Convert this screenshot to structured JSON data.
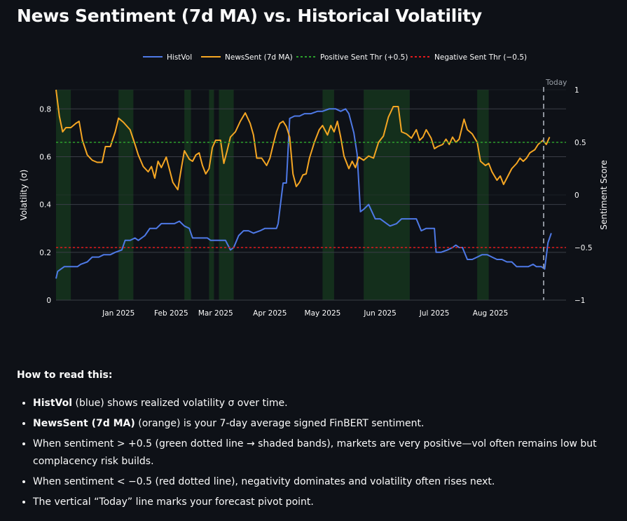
{
  "title": "News Sentiment (7d MA) vs. Historical Volatility",
  "colors": {
    "background": "#0e1117",
    "histvol": "#4e79e6",
    "newssent": "#f5a623",
    "pos_thr": "#2ca02c",
    "neg_thr": "#e31a1c",
    "band": "#173a1f",
    "grid": "#3a3e47",
    "today": "#8d929b"
  },
  "chart_data": {
    "type": "line",
    "title": "News Sentiment (7d MA) vs. Historical Volatility",
    "legend": {
      "placement": "top-center"
    },
    "x_ticks": [
      "Jan 2025",
      "Feb 2025",
      "Mar 2025",
      "Apr 2025",
      "May 2025",
      "Jun 2025",
      "Jul 2025",
      "Aug 2025"
    ],
    "y_left": {
      "label": "Volatility (σ)",
      "range": [
        0,
        0.88
      ],
      "ticks": [
        "0",
        "0.2",
        "0.4",
        "0.6",
        "0.8"
      ]
    },
    "y_right": {
      "label": "Sentiment Score",
      "range": [
        -1,
        1
      ],
      "ticks": [
        "−1",
        "−0.5",
        "0",
        "0.5",
        "1"
      ]
    },
    "today_label": "Today",
    "today_date": "2025-08-14",
    "series": [
      {
        "name": "HistVol",
        "axis": "left",
        "points": [
          [
            "2024-12-18",
            0.09
          ],
          [
            "2024-12-19",
            0.12
          ],
          [
            "2024-12-21",
            0.13
          ],
          [
            "2024-12-23",
            0.14
          ],
          [
            "2024-12-27",
            0.14
          ],
          [
            "2024-12-31",
            0.14
          ],
          [
            "2025-01-02",
            0.15
          ],
          [
            "2025-01-06",
            0.16
          ],
          [
            "2025-01-09",
            0.18
          ],
          [
            "2025-01-13",
            0.18
          ],
          [
            "2025-01-16",
            0.19
          ],
          [
            "2025-01-20",
            0.19
          ],
          [
            "2025-01-23",
            0.2
          ],
          [
            "2025-01-27",
            0.21
          ],
          [
            "2025-01-29",
            0.25
          ],
          [
            "2025-02-01",
            0.25
          ],
          [
            "2025-02-04",
            0.26
          ],
          [
            "2025-02-06",
            0.25
          ],
          [
            "2025-02-10",
            0.27
          ],
          [
            "2025-02-13",
            0.3
          ],
          [
            "2025-02-17",
            0.3
          ],
          [
            "2025-02-20",
            0.32
          ],
          [
            "2025-02-24",
            0.32
          ],
          [
            "2025-02-28",
            0.32
          ],
          [
            "2025-03-03",
            0.33
          ],
          [
            "2025-03-06",
            0.31
          ],
          [
            "2025-03-09",
            0.3
          ],
          [
            "2025-03-11",
            0.26
          ],
          [
            "2025-03-16",
            0.26
          ],
          [
            "2025-03-20",
            0.26
          ],
          [
            "2025-03-22",
            0.25
          ],
          [
            "2025-03-27",
            0.25
          ],
          [
            "2025-03-31",
            0.25
          ],
          [
            "2025-04-03",
            0.21
          ],
          [
            "2025-04-05",
            0.22
          ],
          [
            "2025-04-08",
            0.27
          ],
          [
            "2025-04-11",
            0.29
          ],
          [
            "2025-04-14",
            0.29
          ],
          [
            "2025-04-17",
            0.28
          ],
          [
            "2025-04-21",
            0.29
          ],
          [
            "2025-04-24",
            0.3
          ],
          [
            "2025-04-27",
            0.3
          ],
          [
            "2025-05-01",
            0.3
          ],
          [
            "2025-05-02",
            0.32
          ],
          [
            "2025-05-05",
            0.49
          ],
          [
            "2025-05-07",
            0.49
          ],
          [
            "2025-05-09",
            0.76
          ],
          [
            "2025-05-12",
            0.77
          ],
          [
            "2025-05-15",
            0.77
          ],
          [
            "2025-05-18",
            0.78
          ],
          [
            "2025-05-22",
            0.78
          ],
          [
            "2025-05-26",
            0.79
          ],
          [
            "2025-05-29",
            0.79
          ],
          [
            "2025-06-02",
            0.8
          ],
          [
            "2025-06-06",
            0.8
          ],
          [
            "2025-06-09",
            0.79
          ],
          [
            "2025-06-12",
            0.8
          ],
          [
            "2025-06-14",
            0.78
          ],
          [
            "2025-06-17",
            0.7
          ],
          [
            "2025-06-19",
            0.61
          ],
          [
            "2025-06-21",
            0.37
          ],
          [
            "2025-06-23",
            0.38
          ],
          [
            "2025-06-26",
            0.4
          ],
          [
            "2025-06-28",
            0.37
          ],
          [
            "2025-06-30",
            0.34
          ],
          [
            "2025-07-03",
            0.34
          ],
          [
            "2025-07-07",
            0.32
          ],
          [
            "2025-07-09",
            0.31
          ],
          [
            "2025-07-13",
            0.32
          ],
          [
            "2025-07-16",
            0.34
          ],
          [
            "2025-07-21",
            0.34
          ],
          [
            "2025-07-25",
            0.34
          ],
          [
            "2025-07-28",
            0.29
          ],
          [
            "2025-07-31",
            0.3
          ],
          [
            "2025-08-05",
            0.3
          ],
          [
            "2025-08-06",
            0.2
          ],
          [
            "2025-08-09",
            0.2
          ],
          [
            "2025-08-13",
            0.21
          ],
          [
            "2025-08-16",
            0.22
          ],
          [
            "2025-08-18",
            0.23
          ],
          [
            "2025-08-20",
            0.22
          ],
          [
            "2025-08-22",
            0.22
          ],
          [
            "2025-08-25",
            0.17
          ],
          [
            "2025-08-28",
            0.17
          ],
          [
            "2025-08-31",
            0.18
          ],
          [
            "2025-09-03",
            0.19
          ],
          [
            "2025-09-06",
            0.19
          ],
          [
            "2025-09-09",
            0.18
          ],
          [
            "2025-09-12",
            0.17
          ],
          [
            "2025-09-15",
            0.17
          ],
          [
            "2025-09-18",
            0.16
          ],
          [
            "2025-09-21",
            0.16
          ],
          [
            "2025-09-24",
            0.14
          ],
          [
            "2025-09-28",
            0.14
          ],
          [
            "2025-10-01",
            0.14
          ],
          [
            "2025-10-04",
            0.15
          ],
          [
            "2025-10-06",
            0.14
          ],
          [
            "2025-10-09",
            0.14
          ],
          [
            "2025-10-11",
            0.13
          ],
          [
            "2025-10-13",
            0.24
          ],
          [
            "2025-10-15",
            0.28
          ]
        ]
      },
      {
        "name": "NewsSent (7d MA)",
        "axis": "right",
        "points": [
          [
            "2024-12-18",
            1.0
          ],
          [
            "2024-12-20",
            0.75
          ],
          [
            "2024-12-22",
            0.6
          ],
          [
            "2024-12-24",
            0.64
          ],
          [
            "2024-12-27",
            0.64
          ],
          [
            "2024-12-30",
            0.68
          ],
          [
            "2025-01-01",
            0.7
          ],
          [
            "2025-01-03",
            0.52
          ],
          [
            "2025-01-06",
            0.38
          ],
          [
            "2025-01-09",
            0.33
          ],
          [
            "2025-01-12",
            0.31
          ],
          [
            "2025-01-15",
            0.31
          ],
          [
            "2025-01-17",
            0.46
          ],
          [
            "2025-01-20",
            0.46
          ],
          [
            "2025-01-23",
            0.6
          ],
          [
            "2025-01-25",
            0.73
          ],
          [
            "2025-01-28",
            0.69
          ],
          [
            "2025-02-01",
            0.62
          ],
          [
            "2025-02-04",
            0.48
          ],
          [
            "2025-02-06",
            0.38
          ],
          [
            "2025-02-09",
            0.27
          ],
          [
            "2025-02-12",
            0.22
          ],
          [
            "2025-02-14",
            0.27
          ],
          [
            "2025-02-16",
            0.16
          ],
          [
            "2025-02-18",
            0.32
          ],
          [
            "2025-02-20",
            0.26
          ],
          [
            "2025-02-23",
            0.36
          ],
          [
            "2025-02-25",
            0.24
          ],
          [
            "2025-02-27",
            0.12
          ],
          [
            "2025-03-02",
            0.05
          ],
          [
            "2025-03-04",
            0.24
          ],
          [
            "2025-03-06",
            0.42
          ],
          [
            "2025-03-09",
            0.34
          ],
          [
            "2025-03-11",
            0.32
          ],
          [
            "2025-03-13",
            0.38
          ],
          [
            "2025-03-15",
            0.4
          ],
          [
            "2025-03-17",
            0.28
          ],
          [
            "2025-03-19",
            0.2
          ],
          [
            "2025-03-21",
            0.25
          ],
          [
            "2025-03-23",
            0.45
          ],
          [
            "2025-03-25",
            0.52
          ],
          [
            "2025-03-28",
            0.52
          ],
          [
            "2025-03-30",
            0.3
          ],
          [
            "2025-04-01",
            0.42
          ],
          [
            "2025-04-03",
            0.55
          ],
          [
            "2025-04-06",
            0.6
          ],
          [
            "2025-04-09",
            0.7
          ],
          [
            "2025-04-12",
            0.78
          ],
          [
            "2025-04-15",
            0.68
          ],
          [
            "2025-04-17",
            0.57
          ],
          [
            "2025-04-19",
            0.35
          ],
          [
            "2025-04-22",
            0.35
          ],
          [
            "2025-04-25",
            0.28
          ],
          [
            "2025-04-27",
            0.35
          ],
          [
            "2025-04-29",
            0.48
          ],
          [
            "2025-05-01",
            0.6
          ],
          [
            "2025-05-03",
            0.68
          ],
          [
            "2025-05-05",
            0.7
          ],
          [
            "2025-05-07",
            0.65
          ],
          [
            "2025-05-09",
            0.55
          ],
          [
            "2025-05-11",
            0.2
          ],
          [
            "2025-05-13",
            0.08
          ],
          [
            "2025-05-15",
            0.12
          ],
          [
            "2025-05-17",
            0.19
          ],
          [
            "2025-05-19",
            0.2
          ],
          [
            "2025-05-21",
            0.35
          ],
          [
            "2025-05-24",
            0.5
          ],
          [
            "2025-05-27",
            0.62
          ],
          [
            "2025-05-29",
            0.66
          ],
          [
            "2025-06-01",
            0.57
          ],
          [
            "2025-06-03",
            0.66
          ],
          [
            "2025-06-05",
            0.6
          ],
          [
            "2025-06-07",
            0.7
          ],
          [
            "2025-06-09",
            0.55
          ],
          [
            "2025-06-11",
            0.37
          ],
          [
            "2025-06-14",
            0.25
          ],
          [
            "2025-06-16",
            0.32
          ],
          [
            "2025-06-18",
            0.26
          ],
          [
            "2025-06-20",
            0.36
          ],
          [
            "2025-06-23",
            0.33
          ],
          [
            "2025-06-26",
            0.37
          ],
          [
            "2025-06-29",
            0.35
          ],
          [
            "2025-07-02",
            0.5
          ],
          [
            "2025-07-05",
            0.56
          ],
          [
            "2025-07-08",
            0.74
          ],
          [
            "2025-07-11",
            0.84
          ],
          [
            "2025-07-14",
            0.84
          ],
          [
            "2025-07-16",
            0.6
          ],
          [
            "2025-07-19",
            0.58
          ],
          [
            "2025-07-22",
            0.54
          ],
          [
            "2025-07-25",
            0.62
          ],
          [
            "2025-07-27",
            0.52
          ],
          [
            "2025-07-29",
            0.55
          ],
          [
            "2025-07-31",
            0.62
          ],
          [
            "2025-08-03",
            0.54
          ],
          [
            "2025-08-05",
            0.44
          ],
          [
            "2025-08-07",
            0.46
          ],
          [
            "2025-08-10",
            0.48
          ],
          [
            "2025-08-12",
            0.53
          ],
          [
            "2025-08-14",
            0.48
          ],
          [
            "2025-08-16",
            0.55
          ],
          [
            "2025-08-18",
            0.5
          ],
          [
            "2025-08-20",
            0.53
          ],
          [
            "2025-08-23",
            0.72
          ],
          [
            "2025-08-25",
            0.62
          ],
          [
            "2025-08-28",
            0.58
          ],
          [
            "2025-08-31",
            0.5
          ],
          [
            "2025-09-02",
            0.32
          ],
          [
            "2025-09-05",
            0.28
          ],
          [
            "2025-09-07",
            0.3
          ],
          [
            "2025-09-09",
            0.22
          ],
          [
            "2025-09-12",
            0.14
          ],
          [
            "2025-09-14",
            0.18
          ],
          [
            "2025-09-16",
            0.1
          ],
          [
            "2025-09-18",
            0.16
          ],
          [
            "2025-09-21",
            0.25
          ],
          [
            "2025-09-24",
            0.3
          ],
          [
            "2025-09-26",
            0.35
          ],
          [
            "2025-09-28",
            0.32
          ],
          [
            "2025-09-30",
            0.35
          ],
          [
            "2025-10-02",
            0.4
          ],
          [
            "2025-10-05",
            0.43
          ],
          [
            "2025-10-07",
            0.48
          ],
          [
            "2025-10-10",
            0.52
          ],
          [
            "2025-10-12",
            0.48
          ],
          [
            "2025-10-14",
            0.55
          ]
        ]
      },
      {
        "name": "Positive Sent Thr (+0.5)",
        "axis": "right",
        "constant": 0.5
      },
      {
        "name": "Negative Sent Thr (−0.5)",
        "axis": "right",
        "constant": -0.5
      }
    ],
    "shaded_bands": [
      [
        "2024-12-18",
        "2024-12-27"
      ],
      [
        "2025-01-25",
        "2025-02-03"
      ],
      [
        "2025-03-06",
        "2025-03-10"
      ],
      [
        "2025-03-21",
        "2025-03-24"
      ],
      [
        "2025-03-27",
        "2025-04-05"
      ],
      [
        "2025-05-29",
        "2025-06-05"
      ],
      [
        "2025-06-23",
        "2025-07-21"
      ],
      [
        "2025-08-31",
        "2025-09-07"
      ]
    ]
  },
  "notes": {
    "heading": "How to read this:",
    "items": [
      {
        "bold": "HistVol",
        "text": " (blue) shows realized volatility σ over time."
      },
      {
        "bold": "NewsSent (7d MA)",
        "text": " (orange) is your 7-day average signed FinBERT sentiment."
      },
      {
        "bold": "",
        "text": "When sentiment > +0.5 (green dotted line → shaded bands), markets are very positive—vol often remains low but complacency risk builds."
      },
      {
        "bold": "",
        "text": "When sentiment < −0.5 (red dotted line), negativity dominates and volatility often rises next."
      },
      {
        "bold": "",
        "text": "The vertical “Today” line marks your forecast pivot point."
      }
    ]
  }
}
